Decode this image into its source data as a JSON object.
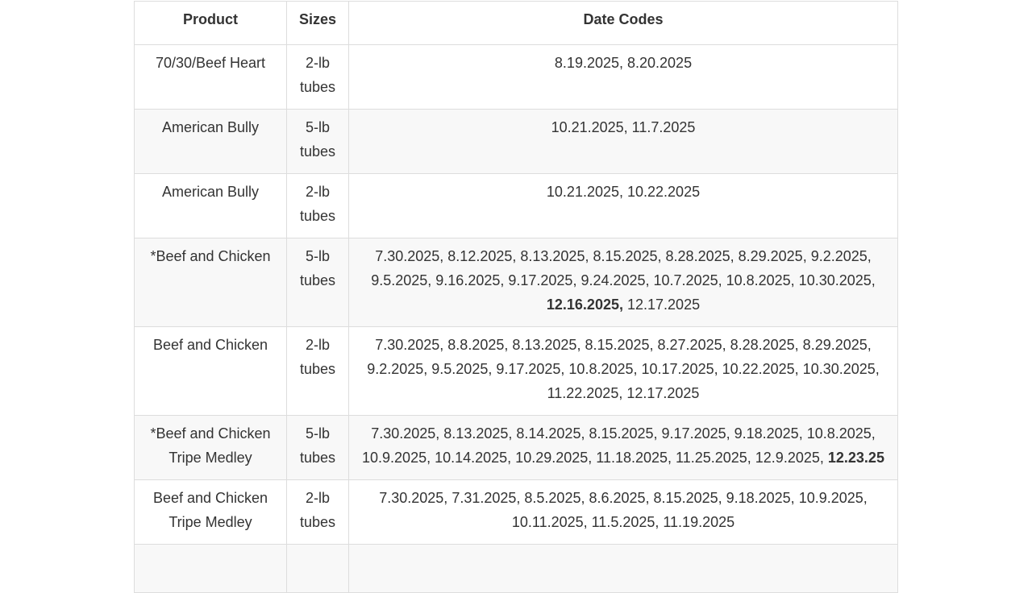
{
  "table": {
    "header": [
      "Product",
      "Sizes",
      "Date Codes"
    ],
    "rows": [
      {
        "product": "70/30/Beef Heart",
        "size": "2-lb tubes",
        "date_codes": [
          {
            "text": "8.19.2025, 8.20.2025",
            "bold": false
          }
        ]
      },
      {
        "product": "American Bully",
        "size": "5-lb tubes",
        "date_codes": [
          {
            "text": "10.21.2025, 11.7.2025",
            "bold": false
          }
        ]
      },
      {
        "product": "American Bully",
        "size": "2-lb tubes",
        "date_codes": [
          {
            "text": "10.21.2025, 10.22.2025",
            "bold": false
          }
        ]
      },
      {
        "product": "*Beef and Chicken",
        "size": "5-lb tubes",
        "date_codes": [
          {
            "text": "7.30.2025, 8.12.2025, 8.13.2025, 8.15.2025, 8.28.2025, 8.29.2025, 9.2.2025, 9.5.2025, 9.16.2025, 9.17.2025, 9.24.2025, 10.7.2025, 10.8.2025, 10.30.2025,",
            "bold": false
          },
          {
            "text": "12.16.2025,",
            "bold": true
          },
          {
            "text": "12.17.2025",
            "bold": false
          }
        ]
      },
      {
        "product": "Beef and Chicken",
        "size": "2-lb tubes",
        "date_codes": [
          {
            "text": "7.30.2025, 8.8.2025, 8.13.2025, 8.15.2025, 8.27.2025, 8.28.2025, 8.29.2025, 9.2.2025, 9.5.2025, 9.17.2025, 10.8.2025, 10.17.2025, 10.22.2025, 10.30.2025, 11.22.2025, 12.17.2025",
            "bold": false
          }
        ]
      },
      {
        "product": "*Beef and Chicken Tripe Medley",
        "size": "5-lb tubes",
        "date_codes": [
          {
            "text": "7.30.2025, 8.13.2025, 8.14.2025, 8.15.2025, 9.17.2025, 9.18.2025, 10.8.2025, 10.9.2025, 10.14.2025, 10.29.2025, 11.18.2025, 11.25.2025, 12.9.2025,",
            "bold": false
          },
          {
            "text": "12.23.25",
            "bold": true
          }
        ]
      },
      {
        "product": "Beef and Chicken Tripe Medley",
        "size": "2-lb tubes",
        "date_codes": [
          {
            "text": "7.30.2025, 7.31.2025, 8.5.2025, 8.6.2025, 8.15.2025, 9.18.2025, 10.9.2025, 10.11.2025, 11.5.2025, 11.19.2025",
            "bold": false
          }
        ]
      }
    ]
  }
}
